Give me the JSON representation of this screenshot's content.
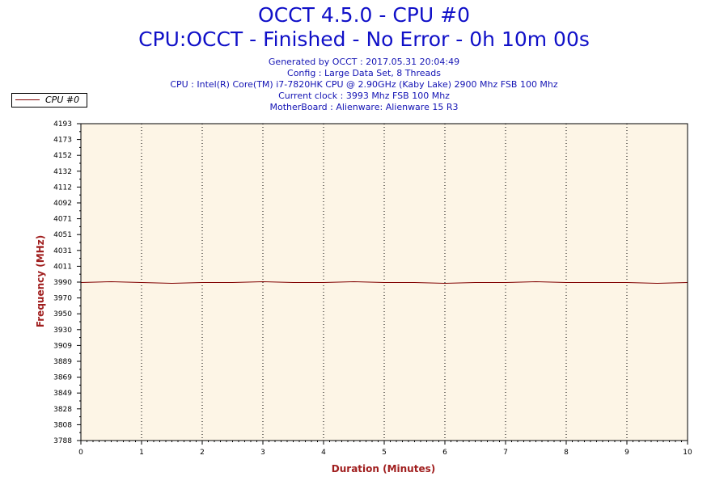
{
  "header": {
    "title": "OCCT 4.5.0 - CPU #0",
    "subtitle": "CPU:OCCT - Finished - No Error - 0h 10m 00s",
    "info_lines": [
      "Generated by OCCT : 2017.05.31 20:04:49",
      "Config : Large Data Set, 8 Threads",
      "CPU : Intel(R) Core(TM) i7-7820HK CPU @ 2.90GHz (Kaby Lake) 2900 Mhz FSB 100 Mhz",
      "Current clock : 3993 Mhz FSB 100 Mhz",
      "MotherBoard : Alienware: Alienware 15 R3"
    ]
  },
  "colors": {
    "title": "#1010c8",
    "plot_background": "#fdf5e6",
    "series_line": "#800000",
    "axis_title": "#a01e1e"
  },
  "chart_data": {
    "type": "line",
    "xlabel": "Duration (Minutes)",
    "ylabel": "Frequency (MHz)",
    "xlim": [
      0,
      10
    ],
    "ylim": [
      3788,
      4193
    ],
    "x_ticks": [
      "0",
      "1",
      "2",
      "3",
      "4",
      "5",
      "6",
      "7",
      "8",
      "9",
      "10"
    ],
    "y_ticks": [
      "3788",
      "3808",
      "3828",
      "3849",
      "3869",
      "3889",
      "3909",
      "3930",
      "3950",
      "3970",
      "3990",
      "4011",
      "4031",
      "4051",
      "4071",
      "4092",
      "4112",
      "4132",
      "4152",
      "4173",
      "4193"
    ],
    "grid": "vertical dotted",
    "legend_position": "top-left",
    "series": [
      {
        "name": "CPU #0",
        "x": [
          0,
          0.5,
          1,
          1.5,
          2,
          2.5,
          3,
          3.5,
          4,
          4.5,
          5,
          5.5,
          6,
          6.5,
          7,
          7.5,
          8,
          8.5,
          9,
          9.5,
          10
        ],
        "values": [
          3990,
          3991,
          3990,
          3989,
          3990,
          3990,
          3991,
          3990,
          3990,
          3991,
          3990,
          3990,
          3989,
          3990,
          3990,
          3991,
          3990,
          3990,
          3990,
          3989,
          3990
        ]
      }
    ]
  }
}
